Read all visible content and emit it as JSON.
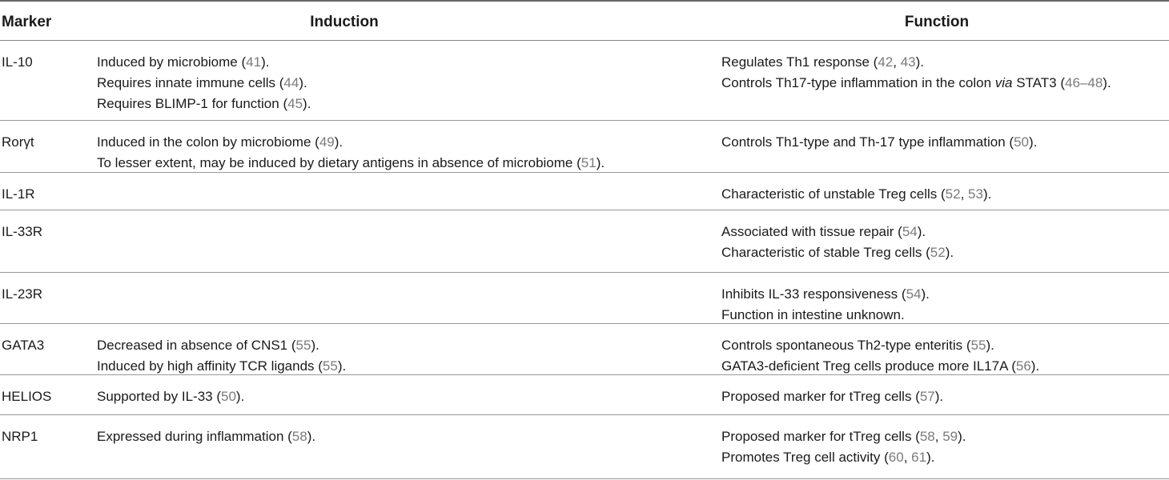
{
  "columns": {
    "marker": "Marker",
    "induction": "Induction",
    "function": "Function"
  },
  "rows": [
    {
      "marker": "IL-10",
      "induction": [
        [
          {
            "t": "Induced by microbiome ("
          },
          {
            "t": "41",
            "ref": true
          },
          {
            "t": ")."
          }
        ],
        [
          {
            "t": "Requires innate immune cells ("
          },
          {
            "t": "44",
            "ref": true
          },
          {
            "t": ")."
          }
        ],
        [
          {
            "t": "Requires BLIMP-1 for function ("
          },
          {
            "t": "45",
            "ref": true
          },
          {
            "t": ")."
          }
        ]
      ],
      "function": [
        [
          {
            "t": "Regulates Th1 response ("
          },
          {
            "t": "42",
            "ref": true
          },
          {
            "t": ", "
          },
          {
            "t": "43",
            "ref": true
          },
          {
            "t": ")."
          }
        ],
        [
          {
            "t": "Controls Th17-type inflammation in the colon "
          },
          {
            "t": "via",
            "italic": true
          },
          {
            "t": " STAT3 ("
          },
          {
            "t": "46–48",
            "ref": true
          },
          {
            "t": ")."
          }
        ]
      ]
    },
    {
      "marker": "Rorγt",
      "induction": [
        [
          {
            "t": "Induced in the colon by microbiome ("
          },
          {
            "t": "49",
            "ref": true
          },
          {
            "t": ")."
          }
        ],
        [
          {
            "t": "To lesser extent, may be induced by dietary antigens in absence of microbiome ("
          },
          {
            "t": "51",
            "ref": true
          },
          {
            "t": ")."
          }
        ]
      ],
      "function": [
        [
          {
            "t": "Controls Th1-type and Th-17 type inflammation ("
          },
          {
            "t": "50",
            "ref": true
          },
          {
            "t": ")."
          }
        ]
      ]
    },
    {
      "marker": "IL-1R",
      "induction": [],
      "function": [
        [
          {
            "t": "Characteristic of unstable Treg cells ("
          },
          {
            "t": "52",
            "ref": true
          },
          {
            "t": ", "
          },
          {
            "t": "53",
            "ref": true
          },
          {
            "t": ")."
          }
        ]
      ]
    },
    {
      "marker": "IL-33R",
      "induction": [],
      "function": [
        [
          {
            "t": "Associated with tissue repair ("
          },
          {
            "t": "54",
            "ref": true
          },
          {
            "t": ")."
          }
        ],
        [
          {
            "t": "Characteristic of stable Treg cells ("
          },
          {
            "t": "52",
            "ref": true
          },
          {
            "t": ")."
          }
        ]
      ]
    },
    {
      "marker": "IL-23R",
      "induction": [],
      "function": [
        [
          {
            "t": "Inhibits IL-33 responsiveness ("
          },
          {
            "t": "54",
            "ref": true
          },
          {
            "t": ")."
          }
        ],
        [
          {
            "t": "Function in intestine unknown."
          }
        ]
      ]
    },
    {
      "marker": "GATA3",
      "induction": [
        [
          {
            "t": "Decreased in absence of CNS1 ("
          },
          {
            "t": "55",
            "ref": true
          },
          {
            "t": ")."
          }
        ],
        [
          {
            "t": "Induced by high affinity TCR ligands ("
          },
          {
            "t": "55",
            "ref": true
          },
          {
            "t": ")."
          }
        ]
      ],
      "function": [
        [
          {
            "t": "Controls spontaneous Th2-type enteritis ("
          },
          {
            "t": "55",
            "ref": true
          },
          {
            "t": ")."
          }
        ],
        [
          {
            "t": "GATA3-deficient Treg cells produce more IL17A ("
          },
          {
            "t": "56",
            "ref": true
          },
          {
            "t": ")."
          }
        ]
      ]
    },
    {
      "marker": "HELIOS",
      "induction": [
        [
          {
            "t": "Supported by IL-33 ("
          },
          {
            "t": "50",
            "ref": true
          },
          {
            "t": ")."
          }
        ]
      ],
      "function": [
        [
          {
            "t": "Proposed marker for tTreg cells ("
          },
          {
            "t": "57",
            "ref": true
          },
          {
            "t": ")."
          }
        ]
      ]
    },
    {
      "marker": "NRP1",
      "induction": [
        [
          {
            "t": "Expressed during inflammation ("
          },
          {
            "t": "58",
            "ref": true
          },
          {
            "t": ")."
          }
        ]
      ],
      "function": [
        [
          {
            "t": "Proposed marker for tTreg cells ("
          },
          {
            "t": "58",
            "ref": true
          },
          {
            "t": ", "
          },
          {
            "t": "59",
            "ref": true
          },
          {
            "t": ")."
          }
        ],
        [
          {
            "t": "Promotes Treg cell activity ("
          },
          {
            "t": "60",
            "ref": true
          },
          {
            "t": ", "
          },
          {
            "t": "61",
            "ref": true
          },
          {
            "t": ")."
          }
        ]
      ]
    }
  ]
}
